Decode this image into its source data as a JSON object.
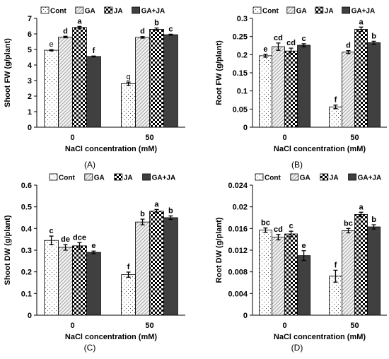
{
  "legend": [
    "Cont",
    "GA",
    "JA",
    "GA+JA"
  ],
  "colors": {
    "bar_stroke": "#000000",
    "gaja_fill": "#404040"
  },
  "chart_data": [
    {
      "type": "bar",
      "panel_label": "(A)",
      "ylabel": "Shoot FW (g/plant)",
      "xlabel": "NaCl concentration (mM)",
      "categories": [
        "0",
        "50"
      ],
      "ylim": [
        0,
        7
      ],
      "yticks": [
        "0",
        "1",
        "2",
        "3",
        "4",
        "5",
        "6",
        "7"
      ],
      "series": [
        {
          "name": "Cont",
          "values": [
            4.95,
            2.8
          ],
          "errors": [
            0.04,
            0.1
          ],
          "letters": [
            "e",
            "g"
          ]
        },
        {
          "name": "GA",
          "values": [
            5.8,
            5.78
          ],
          "errors": [
            0.05,
            0.05
          ],
          "letters": [
            "d",
            "d"
          ]
        },
        {
          "name": "JA",
          "values": [
            6.42,
            6.3
          ],
          "errors": [
            0.06,
            0.08
          ],
          "letters": [
            "a",
            "b"
          ]
        },
        {
          "name": "GA+JA",
          "values": [
            4.55,
            5.95
          ],
          "errors": [
            0.03,
            0.03
          ],
          "letters": [
            "f",
            "c"
          ]
        }
      ]
    },
    {
      "type": "bar",
      "panel_label": "(B)",
      "ylabel": "Root FW (g/plant)",
      "xlabel": "NaCl concentration (mM)",
      "categories": [
        "0",
        "50"
      ],
      "ylim": [
        0,
        0.3
      ],
      "yticks": [
        "0",
        "0.05",
        "0.1",
        "0.15",
        "0.2",
        "0.25",
        "0.3"
      ],
      "series": [
        {
          "name": "Cont",
          "values": [
            0.197,
            0.056
          ],
          "errors": [
            0.004,
            0.005
          ],
          "letters": [
            "e",
            "f"
          ]
        },
        {
          "name": "GA",
          "values": [
            0.222,
            0.207
          ],
          "errors": [
            0.01,
            0.004
          ],
          "letters": [
            "cd",
            "d"
          ]
        },
        {
          "name": "JA",
          "values": [
            0.21,
            0.27
          ],
          "errors": [
            0.008,
            0.006
          ],
          "letters": [
            "cd",
            "a"
          ]
        },
        {
          "name": "GA+JA",
          "values": [
            0.226,
            0.233
          ],
          "errors": [
            0.004,
            0.004
          ],
          "letters": [
            "c",
            "b"
          ]
        }
      ]
    },
    {
      "type": "bar",
      "panel_label": "(C)",
      "ylabel": "Shoot DW (g/plant)",
      "xlabel": "NaCl concentration (mM)",
      "categories": [
        "0",
        "50"
      ],
      "ylim": [
        0,
        0.6
      ],
      "yticks": [
        "0",
        "0.1",
        "0.2",
        "0.3",
        "0.4",
        "0.5",
        "0.6"
      ],
      "series": [
        {
          "name": "Cont",
          "values": [
            0.345,
            0.187
          ],
          "errors": [
            0.02,
            0.012
          ],
          "letters": [
            "c",
            "f"
          ]
        },
        {
          "name": "GA",
          "values": [
            0.313,
            0.43
          ],
          "errors": [
            0.013,
            0.013
          ],
          "letters": [
            "de",
            "b"
          ]
        },
        {
          "name": "JA",
          "values": [
            0.32,
            0.48
          ],
          "errors": [
            0.015,
            0.008
          ],
          "letters": [
            "dce",
            "a"
          ]
        },
        {
          "name": "GA+JA",
          "values": [
            0.29,
            0.45
          ],
          "errors": [
            0.006,
            0.008
          ],
          "letters": [
            "e",
            "b"
          ]
        }
      ]
    },
    {
      "type": "bar",
      "panel_label": "(D)",
      "ylabel": "Root DW (g/plant)",
      "xlabel": "NaCl concentration (mM)",
      "categories": [
        "0",
        "50"
      ],
      "ylim": [
        0,
        0.024
      ],
      "yticks": [
        "0",
        "0.004",
        "0.008",
        "0.012",
        "0.016",
        "0.02",
        "0.024"
      ],
      "series": [
        {
          "name": "Cont",
          "values": [
            0.0157,
            0.0072
          ],
          "errors": [
            0.0004,
            0.0011
          ],
          "letters": [
            "bc",
            "f"
          ]
        },
        {
          "name": "GA",
          "values": [
            0.0144,
            0.0156
          ],
          "errors": [
            0.0005,
            0.0004
          ],
          "letters": [
            "cd",
            "bc"
          ]
        },
        {
          "name": "JA",
          "values": [
            0.015,
            0.0186
          ],
          "errors": [
            0.0005,
            0.0004
          ],
          "letters": [
            "c",
            "a"
          ]
        },
        {
          "name": "GA+JA",
          "values": [
            0.011,
            0.0163
          ],
          "errors": [
            0.0009,
            0.0004
          ],
          "letters": [
            "e",
            "b"
          ]
        }
      ]
    }
  ]
}
